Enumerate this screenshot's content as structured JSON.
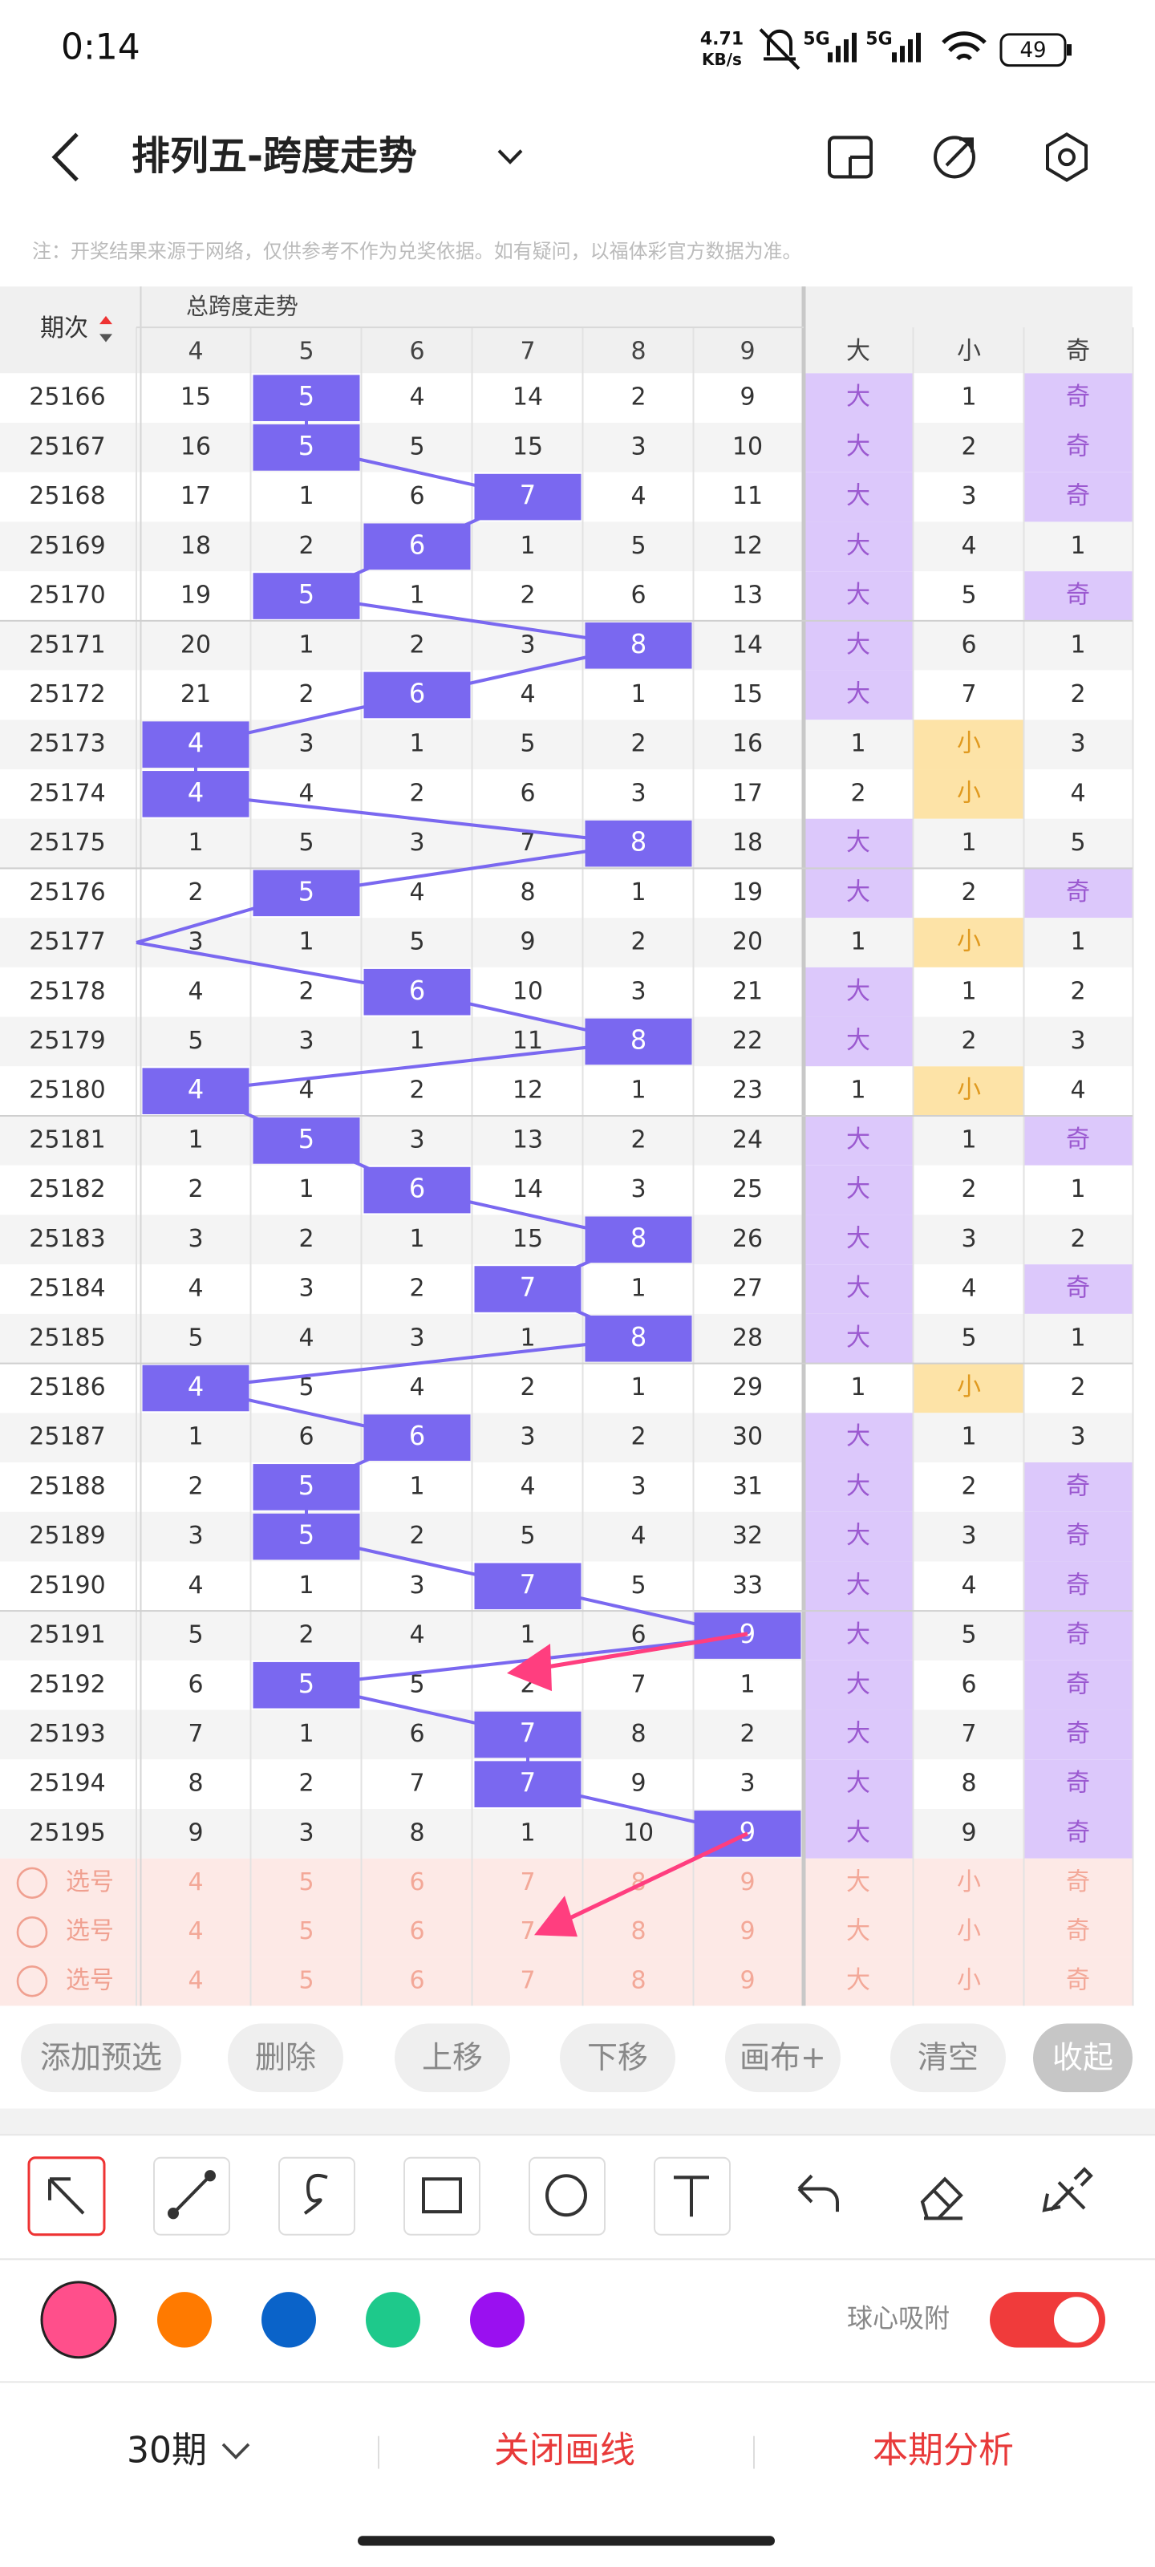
{
  "status_bar": {
    "time": "0:14",
    "net_speed": "4.71",
    "net_unit": "KB/s",
    "signal1": "5G",
    "signal2": "5G",
    "battery": "49"
  },
  "header": {
    "title": "排列五-跨度走势"
  },
  "notice": "注：开奖结果来源于网络，仅供参考不作为兑奖依据。如有疑问，以福体彩官方数据为准。",
  "table": {
    "period_header": "期次",
    "group_header": "总跨度走势",
    "columns": [
      "4",
      "5",
      "6",
      "7",
      "8",
      "9"
    ],
    "stat_columns": [
      "大",
      "小",
      "奇"
    ],
    "rows": [
      {
        "period": "25166",
        "cells": [
          "15",
          "5",
          "4",
          "14",
          "2",
          "9"
        ],
        "hit": 1,
        "stats": [
          "大",
          "1",
          "奇"
        ]
      },
      {
        "period": "25167",
        "cells": [
          "16",
          "5",
          "5",
          "15",
          "3",
          "10"
        ],
        "hit": 1,
        "stats": [
          "大",
          "2",
          "奇"
        ]
      },
      {
        "period": "25168",
        "cells": [
          "17",
          "1",
          "6",
          "7",
          "4",
          "11"
        ],
        "hit": 3,
        "stats": [
          "大",
          "3",
          "奇"
        ]
      },
      {
        "period": "25169",
        "cells": [
          "18",
          "2",
          "6",
          "1",
          "5",
          "12"
        ],
        "hit": 2,
        "stats": [
          "大",
          "4",
          "1"
        ]
      },
      {
        "period": "25170",
        "cells": [
          "19",
          "5",
          "1",
          "2",
          "6",
          "13"
        ],
        "hit": 1,
        "stats": [
          "大",
          "5",
          "奇"
        ]
      },
      {
        "period": "25171",
        "cells": [
          "20",
          "1",
          "2",
          "3",
          "8",
          "14"
        ],
        "hit": 4,
        "stats": [
          "大",
          "6",
          "1"
        ]
      },
      {
        "period": "25172",
        "cells": [
          "21",
          "2",
          "6",
          "4",
          "1",
          "15"
        ],
        "hit": 2,
        "stats": [
          "大",
          "7",
          "2"
        ]
      },
      {
        "period": "25173",
        "cells": [
          "4",
          "3",
          "1",
          "5",
          "2",
          "16"
        ],
        "hit": 0,
        "stats": [
          "1",
          "小",
          "3"
        ]
      },
      {
        "period": "25174",
        "cells": [
          "4",
          "4",
          "2",
          "6",
          "3",
          "17"
        ],
        "hit": 0,
        "stats": [
          "2",
          "小",
          "4"
        ]
      },
      {
        "period": "25175",
        "cells": [
          "1",
          "5",
          "3",
          "7",
          "8",
          "18"
        ],
        "hit": 4,
        "stats": [
          "大",
          "1",
          "5"
        ]
      },
      {
        "period": "25176",
        "cells": [
          "2",
          "5",
          "4",
          "8",
          "1",
          "19"
        ],
        "hit": 1,
        "stats": [
          "大",
          "2",
          "奇"
        ]
      },
      {
        "period": "25177",
        "cells": [
          "3",
          "1",
          "5",
          "9",
          "2",
          "20"
        ],
        "hit": null,
        "stats": [
          "1",
          "小",
          "1"
        ]
      },
      {
        "period": "25178",
        "cells": [
          "4",
          "2",
          "6",
          "10",
          "3",
          "21"
        ],
        "hit": 2,
        "stats": [
          "大",
          "1",
          "2"
        ]
      },
      {
        "period": "25179",
        "cells": [
          "5",
          "3",
          "1",
          "11",
          "8",
          "22"
        ],
        "hit": 4,
        "stats": [
          "大",
          "2",
          "3"
        ]
      },
      {
        "period": "25180",
        "cells": [
          "4",
          "4",
          "2",
          "12",
          "1",
          "23"
        ],
        "hit": 0,
        "stats": [
          "1",
          "小",
          "4"
        ]
      },
      {
        "period": "25181",
        "cells": [
          "1",
          "5",
          "3",
          "13",
          "2",
          "24"
        ],
        "hit": 1,
        "stats": [
          "大",
          "1",
          "奇"
        ]
      },
      {
        "period": "25182",
        "cells": [
          "2",
          "1",
          "6",
          "14",
          "3",
          "25"
        ],
        "hit": 2,
        "stats": [
          "大",
          "2",
          "1"
        ]
      },
      {
        "period": "25183",
        "cells": [
          "3",
          "2",
          "1",
          "15",
          "8",
          "26"
        ],
        "hit": 4,
        "stats": [
          "大",
          "3",
          "2"
        ]
      },
      {
        "period": "25184",
        "cells": [
          "4",
          "3",
          "2",
          "7",
          "1",
          "27"
        ],
        "hit": 3,
        "stats": [
          "大",
          "4",
          "奇"
        ]
      },
      {
        "period": "25185",
        "cells": [
          "5",
          "4",
          "3",
          "1",
          "8",
          "28"
        ],
        "hit": 4,
        "stats": [
          "大",
          "5",
          "1"
        ]
      },
      {
        "period": "25186",
        "cells": [
          "4",
          "5",
          "4",
          "2",
          "1",
          "29"
        ],
        "hit": 0,
        "stats": [
          "1",
          "小",
          "2"
        ]
      },
      {
        "period": "25187",
        "cells": [
          "1",
          "6",
          "6",
          "3",
          "2",
          "30"
        ],
        "hit": 2,
        "stats": [
          "大",
          "1",
          "3"
        ]
      },
      {
        "period": "25188",
        "cells": [
          "2",
          "5",
          "1",
          "4",
          "3",
          "31"
        ],
        "hit": 1,
        "stats": [
          "大",
          "2",
          "奇"
        ]
      },
      {
        "period": "25189",
        "cells": [
          "3",
          "5",
          "2",
          "5",
          "4",
          "32"
        ],
        "hit": 1,
        "stats": [
          "大",
          "3",
          "奇"
        ]
      },
      {
        "period": "25190",
        "cells": [
          "4",
          "1",
          "3",
          "7",
          "5",
          "33"
        ],
        "hit": 3,
        "stats": [
          "大",
          "4",
          "奇"
        ]
      },
      {
        "period": "25191",
        "cells": [
          "5",
          "2",
          "4",
          "1",
          "6",
          "9"
        ],
        "hit": 5,
        "stats": [
          "大",
          "5",
          "奇"
        ]
      },
      {
        "period": "25192",
        "cells": [
          "6",
          "5",
          "5",
          "2",
          "7",
          "1"
        ],
        "hit": 1,
        "stats": [
          "大",
          "6",
          "奇"
        ]
      },
      {
        "period": "25193",
        "cells": [
          "7",
          "1",
          "6",
          "7",
          "8",
          "2"
        ],
        "hit": 3,
        "stats": [
          "大",
          "7",
          "奇"
        ]
      },
      {
        "period": "25194",
        "cells": [
          "8",
          "2",
          "7",
          "7",
          "9",
          "3"
        ],
        "hit": 3,
        "stats": [
          "大",
          "8",
          "奇"
        ]
      },
      {
        "period": "25195",
        "cells": [
          "9",
          "3",
          "8",
          "1",
          "10",
          "9"
        ],
        "hit": 5,
        "stats": [
          "大",
          "9",
          "奇"
        ]
      }
    ],
    "pick_rows": [
      {
        "label": "选号",
        "cells": [
          "4",
          "5",
          "6",
          "7",
          "8",
          "9",
          "大",
          "小",
          "奇"
        ]
      },
      {
        "label": "选号",
        "cells": [
          "4",
          "5",
          "6",
          "7",
          "8",
          "9",
          "大",
          "小",
          "奇"
        ]
      },
      {
        "label": "选号",
        "cells": [
          "4",
          "5",
          "6",
          "7",
          "8",
          "9",
          "大",
          "小",
          "奇"
        ]
      }
    ]
  },
  "actions": [
    "添加预选",
    "删除",
    "上移",
    "下移",
    "画布+",
    "清空",
    "收起"
  ],
  "palette": [
    "#ff4f8b",
    "#ff7a00",
    "#0a63c9",
    "#1ec98b",
    "#9a10f0"
  ],
  "snap_label": "球心吸附",
  "footer": {
    "periods": "30期",
    "close_lines": "关闭画线",
    "analysis": "本期分析"
  }
}
